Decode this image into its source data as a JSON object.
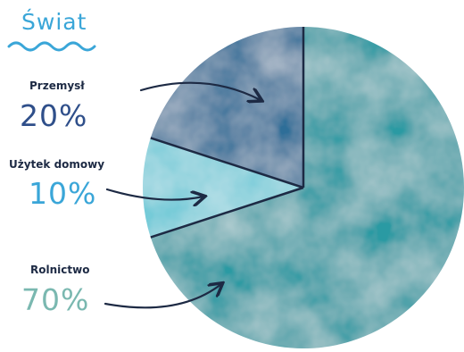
{
  "title": "Świat",
  "colors": {
    "title": "#3aa6d8",
    "label": "#1d2a44",
    "pct_industry": "#2f4f8a",
    "pct_domestic": "#3aa6d8",
    "pct_agriculture": "#7ab8b0",
    "slice_industry": "#2f6e98",
    "slice_domestic": "#74cbd8",
    "slice_agriculture": "#2a9aa3"
  },
  "chart_data": {
    "type": "pie",
    "title": "Świat",
    "slices": [
      {
        "label": "Przemysł",
        "value": 20,
        "display": "20%"
      },
      {
        "label": "Użytek domowy",
        "value": 10,
        "display": "10%"
      },
      {
        "label": "Rolnictwo",
        "value": 70,
        "display": "70%"
      }
    ]
  }
}
